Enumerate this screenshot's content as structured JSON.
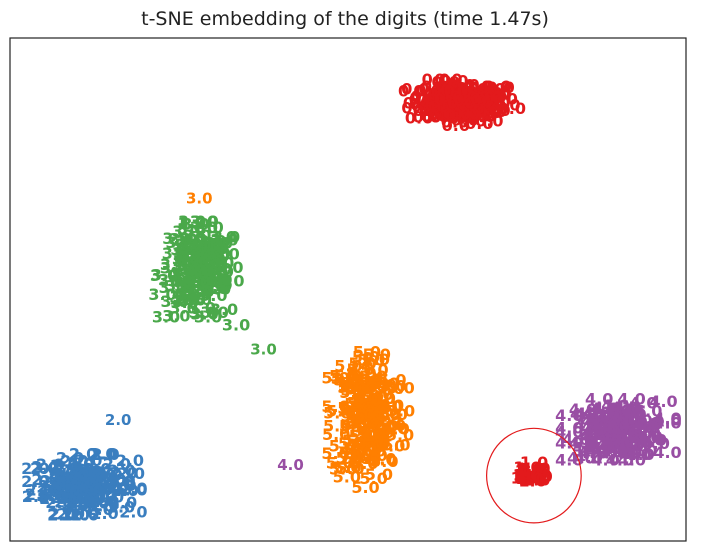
{
  "chart_data": {
    "type": "scatter",
    "title": "t-SNE embedding of the digits (time 1.47s)",
    "xlabel": "",
    "ylabel": "",
    "grid": false,
    "ticks": false,
    "legend": "none",
    "axis_domain": {
      "x": [
        0,
        100
      ],
      "y": [
        0,
        100
      ]
    },
    "series": [
      {
        "class": "0",
        "label_text": "0.0",
        "color": "#e31a1c",
        "center": [
          67,
          87
        ],
        "spread": [
          6.2,
          3.8
        ],
        "count": 150
      },
      {
        "class": "2",
        "label_text": "2.0",
        "color": "#3a7ebf",
        "center": [
          11,
          11
        ],
        "spread": [
          6.0,
          5.0
        ],
        "count": 150
      },
      {
        "class": "3",
        "label_text": "3.0",
        "color": "#4aa84a",
        "center": [
          28,
          53
        ],
        "spread": [
          4.5,
          8.5
        ],
        "count": 140
      },
      {
        "class": "4",
        "label_text": "4.0",
        "color": "#984ea3",
        "center": [
          90,
          22
        ],
        "spread": [
          6.0,
          5.0
        ],
        "count": 140
      },
      {
        "class": "5",
        "label_text": "5.0",
        "color": "#ff7f00",
        "center": [
          53,
          25
        ],
        "spread": [
          4.0,
          12.0
        ],
        "count": 150
      },
      {
        "class": "1",
        "label_text": "1.0",
        "color": "#e31a1c",
        "center": [
          77,
          13
        ],
        "spread": [
          1.5,
          2.0
        ],
        "count": 25
      }
    ],
    "visible_text_labels": [
      {
        "text": "3.0",
        "color": "#4aa84a",
        "x": 37.5,
        "y": 38
      },
      {
        "text": "3.0",
        "color": "#ff7f00",
        "x": 28.0,
        "y": 68
      },
      {
        "text": "2.0",
        "color": "#3a7ebf",
        "x": 16.0,
        "y": 24
      },
      {
        "text": "4.0",
        "color": "#984ea3",
        "x": 41.5,
        "y": 15
      }
    ],
    "highlight": {
      "shape": "circle",
      "color": "#e31a1c",
      "center": [
        77.5,
        13
      ],
      "radius_units": 7
    }
  }
}
